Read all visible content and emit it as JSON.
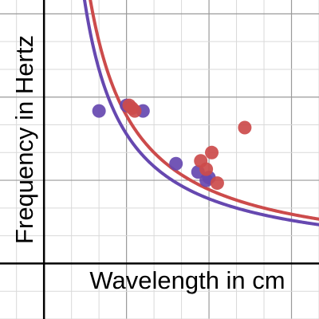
{
  "chart_data": {
    "type": "scatter",
    "title": "",
    "xlabel": "Wavelength in cm",
    "ylabel": "Frequency in Hertz",
    "xlim": [
      -1.6,
      10
    ],
    "ylim": [
      -2,
      9.5
    ],
    "grid": true,
    "grid_step": 1,
    "major_grid_step": 3,
    "series": [
      {
        "color": "#6648b0",
        "points": [
          [
            2.0,
            5.5
          ],
          [
            3.0,
            5.7
          ],
          [
            3.6,
            5.5
          ],
          [
            4.8,
            3.6
          ],
          [
            5.6,
            3.3
          ],
          [
            5.9,
            3.0
          ],
          [
            6.0,
            3.1
          ]
        ],
        "curve": {
          "k": 14,
          "x_from": 1.1,
          "x_to": 10
        }
      },
      {
        "color": "#cc4b4b",
        "points": [
          [
            3.1,
            5.7
          ],
          [
            3.2,
            5.6
          ],
          [
            3.3,
            5.5
          ],
          [
            5.7,
            3.7
          ],
          [
            5.9,
            3.4
          ],
          [
            6.1,
            4.0
          ],
          [
            6.3,
            2.9
          ],
          [
            7.3,
            4.9
          ]
        ],
        "curve": {
          "k": 16,
          "x_from": 1.4,
          "x_to": 10
        }
      }
    ]
  }
}
